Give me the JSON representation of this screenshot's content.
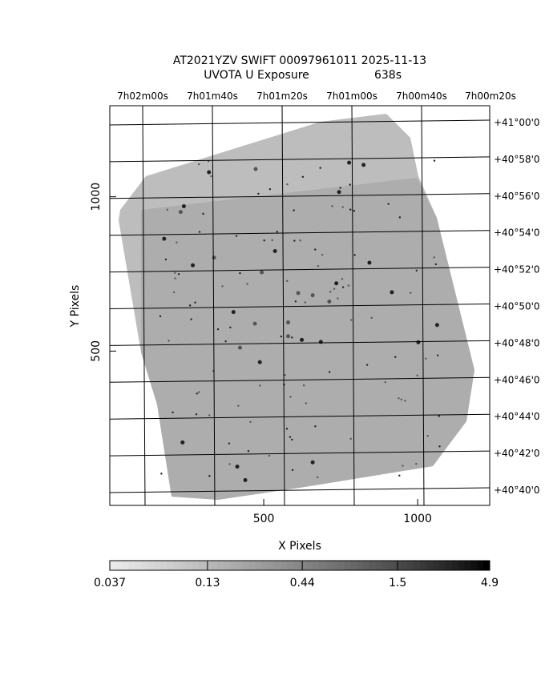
{
  "chart_data": {
    "type": "image",
    "title": "AT2021YZV SWIFT 00097961011 2025-11-13",
    "subtitle": "UVOTA U Exposure",
    "exposure": "638s",
    "x_label": "X Pixels",
    "y_label": "Y Pixels",
    "xlim": [
      0,
      1234
    ],
    "ylim": [
      0,
      1295
    ],
    "xticks": [
      500,
      1000
    ],
    "yticks": [
      500,
      1000
    ],
    "ra_labels": [
      "7h02m00s",
      "7h01m40s",
      "7h01m20s",
      "7h01m00s",
      "7h00m40s",
      "7h00m20s"
    ],
    "dec_labels": [
      "+41°00'0",
      "+40°58'0",
      "+40°56'0",
      "+40°54'0",
      "+40°52'0",
      "+40°50'0",
      "+40°48'0",
      "+40°46'0",
      "+40°44'0",
      "+40°42'0",
      "+40°40'0"
    ],
    "colorbar": {
      "scale": "log",
      "lim": [
        0.037,
        4.9
      ],
      "ticks": [
        0.037,
        0.13,
        0.44,
        1.5,
        4.9
      ]
    }
  }
}
